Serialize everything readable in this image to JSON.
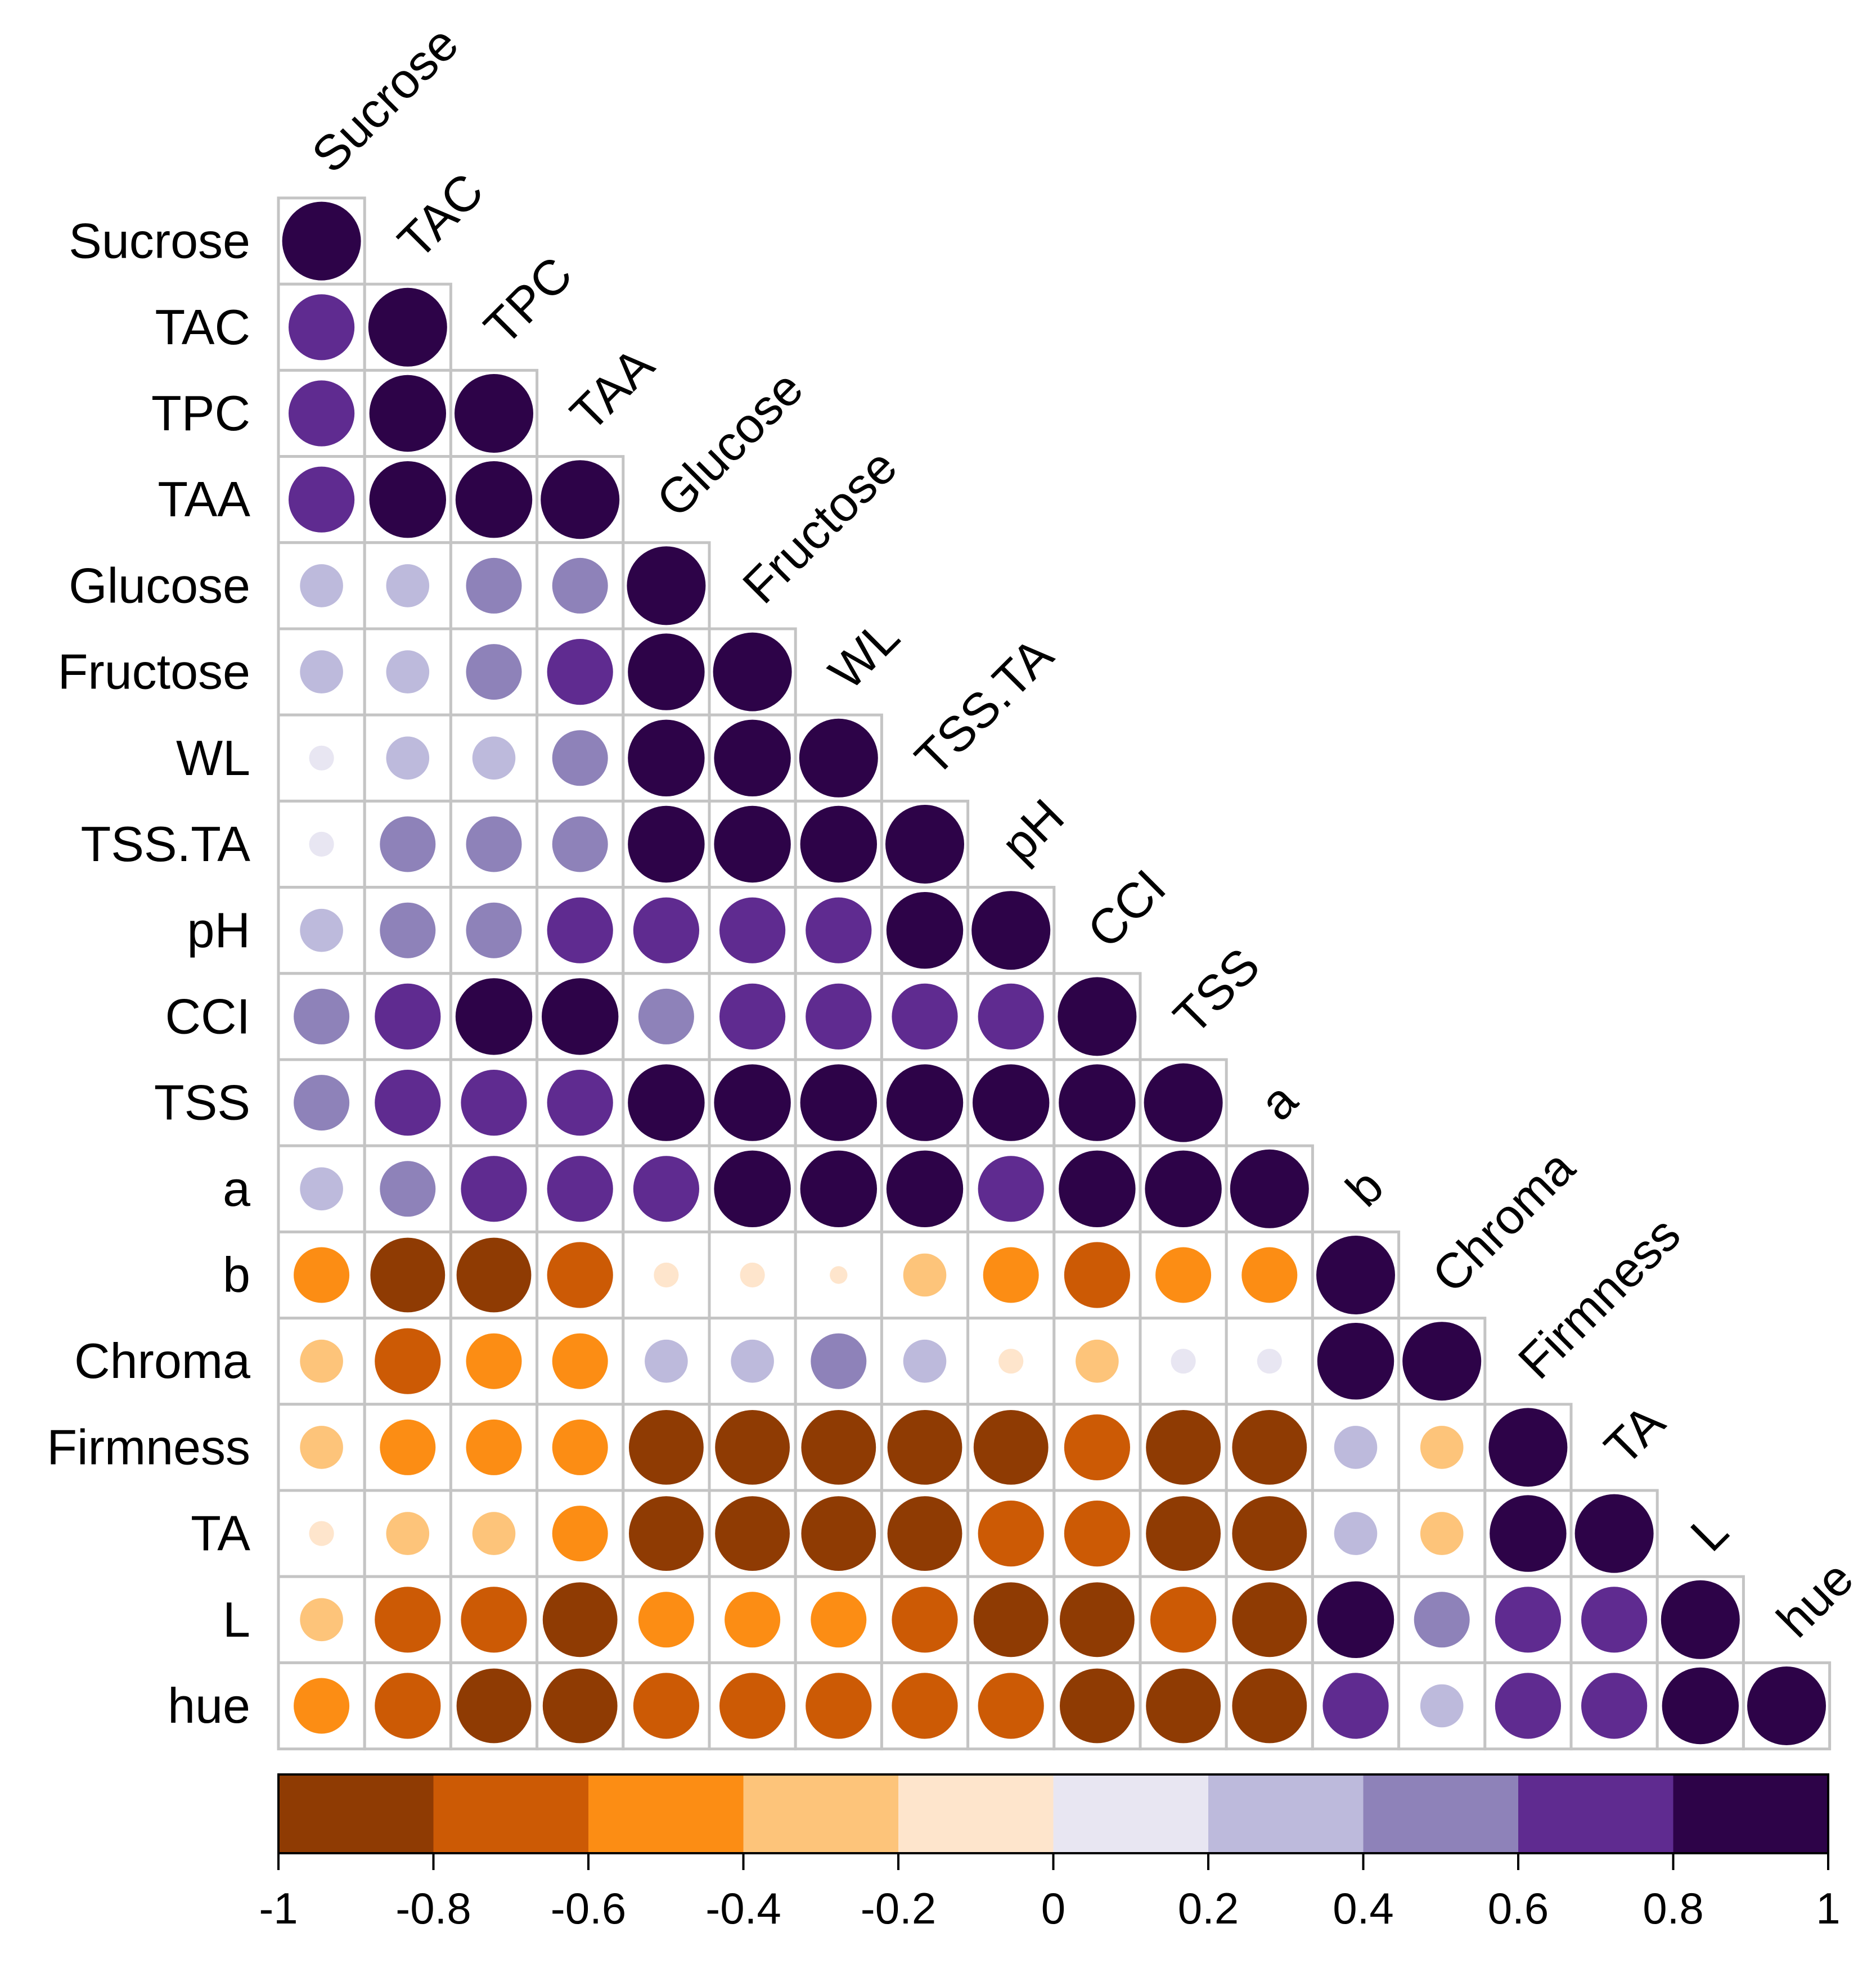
{
  "chart_data": {
    "type": "heatmap",
    "style": "correlogram-circle-lower-triangle",
    "title": "",
    "variables": [
      "Sucrose",
      "TAC",
      "TPC",
      "TAA",
      "Glucose",
      "Fructose",
      "WL",
      "TSS.TA",
      "pH",
      "CCI",
      "TSS",
      "a",
      "b",
      "Chroma",
      "Firmness",
      "TA",
      "L",
      "hue"
    ],
    "matrix": [
      [
        1.0
      ],
      [
        0.7,
        1.0
      ],
      [
        0.7,
        0.95,
        1.0
      ],
      [
        0.7,
        0.95,
        0.95,
        1.0
      ],
      [
        0.3,
        0.3,
        0.5,
        0.5,
        1.0
      ],
      [
        0.3,
        0.3,
        0.5,
        0.7,
        0.95,
        1.0
      ],
      [
        0.1,
        0.3,
        0.3,
        0.5,
        0.95,
        0.95,
        1.0
      ],
      [
        0.1,
        0.5,
        0.5,
        0.5,
        0.95,
        0.95,
        0.95,
        1.0
      ],
      [
        0.3,
        0.5,
        0.5,
        0.7,
        0.7,
        0.7,
        0.7,
        0.95,
        1.0
      ],
      [
        0.5,
        0.7,
        0.95,
        0.95,
        0.5,
        0.7,
        0.7,
        0.7,
        0.7,
        1.0
      ],
      [
        0.5,
        0.7,
        0.7,
        0.7,
        0.95,
        0.95,
        0.95,
        0.95,
        0.95,
        0.95,
        1.0
      ],
      [
        0.3,
        0.5,
        0.7,
        0.7,
        0.7,
        0.95,
        0.95,
        0.95,
        0.7,
        0.95,
        0.95,
        1.0
      ],
      [
        -0.5,
        -0.9,
        -0.9,
        -0.7,
        -0.1,
        -0.1,
        -0.05,
        -0.3,
        -0.5,
        -0.7,
        -0.5,
        -0.5,
        1.0
      ],
      [
        -0.3,
        -0.7,
        -0.5,
        -0.5,
        0.3,
        0.3,
        0.5,
        0.3,
        -0.1,
        -0.3,
        0.1,
        0.1,
        0.95,
        1.0
      ],
      [
        -0.3,
        -0.5,
        -0.5,
        -0.5,
        -0.9,
        -0.9,
        -0.9,
        -0.9,
        -0.9,
        -0.7,
        -0.9,
        -0.9,
        0.3,
        -0.3,
        1.0
      ],
      [
        -0.1,
        -0.3,
        -0.3,
        -0.5,
        -0.9,
        -0.9,
        -0.9,
        -0.9,
        -0.7,
        -0.7,
        -0.9,
        -0.9,
        0.3,
        -0.3,
        0.95,
        1.0
      ],
      [
        -0.3,
        -0.7,
        -0.7,
        -0.9,
        -0.5,
        -0.5,
        -0.5,
        -0.7,
        -0.9,
        -0.9,
        -0.7,
        -0.9,
        0.95,
        0.5,
        0.7,
        0.7,
        1.0
      ],
      [
        -0.5,
        -0.7,
        -0.9,
        -0.9,
        -0.7,
        -0.7,
        -0.7,
        -0.7,
        -0.7,
        -0.9,
        -0.9,
        -0.9,
        0.7,
        0.3,
        0.7,
        0.7,
        0.95,
        1.0
      ]
    ],
    "colorbar": {
      "range": [
        -1,
        1
      ],
      "ticks": [
        "-1",
        "-0.8",
        "-0.6",
        "-0.4",
        "-0.2",
        "0",
        "0.2",
        "0.4",
        "0.6",
        "0.8",
        "1"
      ],
      "bins": [
        {
          "from": -1.0,
          "to": -0.8,
          "color": "#8f3b03"
        },
        {
          "from": -0.8,
          "to": -0.6,
          "color": "#cc5a05"
        },
        {
          "from": -0.6,
          "to": -0.4,
          "color": "#fc8d14"
        },
        {
          "from": -0.4,
          "to": -0.2,
          "color": "#fdc47a"
        },
        {
          "from": -0.2,
          "to": 0.0,
          "color": "#fee5cc"
        },
        {
          "from": 0.0,
          "to": 0.2,
          "color": "#e8e6f2"
        },
        {
          "from": 0.2,
          "to": 0.4,
          "color": "#bdbadc"
        },
        {
          "from": 0.4,
          "to": 0.6,
          "color": "#8e82b9"
        },
        {
          "from": 0.6,
          "to": 0.8,
          "color": "#5f2b90"
        },
        {
          "from": 0.8,
          "to": 1.0,
          "color": "#2d0348"
        }
      ]
    }
  }
}
